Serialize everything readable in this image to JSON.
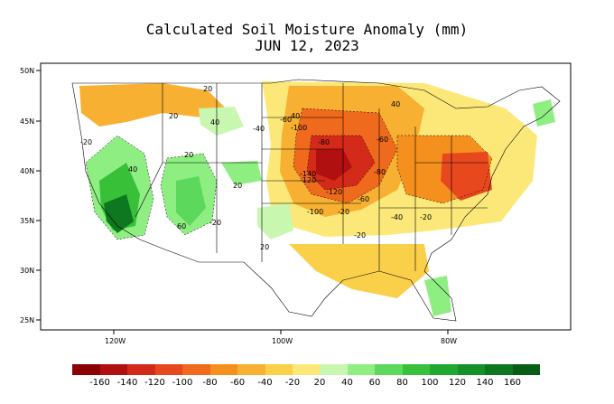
{
  "title": {
    "line1": "Calculated Soil Moisture Anomaly (mm)",
    "line2": "JUN 12, 2023"
  },
  "axes": {
    "lat_labels": [
      "50N",
      "45N",
      "40N",
      "35N",
      "30N",
      "25N"
    ],
    "lon_labels": [
      "120W",
      "100W",
      "80W"
    ]
  },
  "contour_labels": [
    "20",
    "40",
    "-20",
    "-60",
    "40",
    "-100",
    "-80",
    "20",
    "-60",
    "20",
    "40",
    "-140",
    "-120",
    "-80",
    "40",
    "-120",
    "-60",
    "60",
    "-20",
    "-100",
    "-20",
    "-40",
    "-20",
    "20",
    "-20",
    "-40",
    "20"
  ],
  "legend": {
    "dry_colors": [
      "#8b0000",
      "#b01010",
      "#d42a1a",
      "#e8481e",
      "#f06a1e",
      "#f5901e",
      "#f7b032",
      "#fad04a",
      "#fce878"
    ],
    "wet_colors": [
      "#c8f7b0",
      "#8eee82",
      "#5cd85c",
      "#38c038",
      "#20a830",
      "#169028",
      "#0e7820",
      "#075e14"
    ],
    "labels": [
      "-160",
      "-140",
      "-120",
      "-100",
      "-80",
      "-60",
      "-40",
      "-20",
      "20",
      "40",
      "60",
      "80",
      "100",
      "120",
      "140",
      "160"
    ]
  }
}
